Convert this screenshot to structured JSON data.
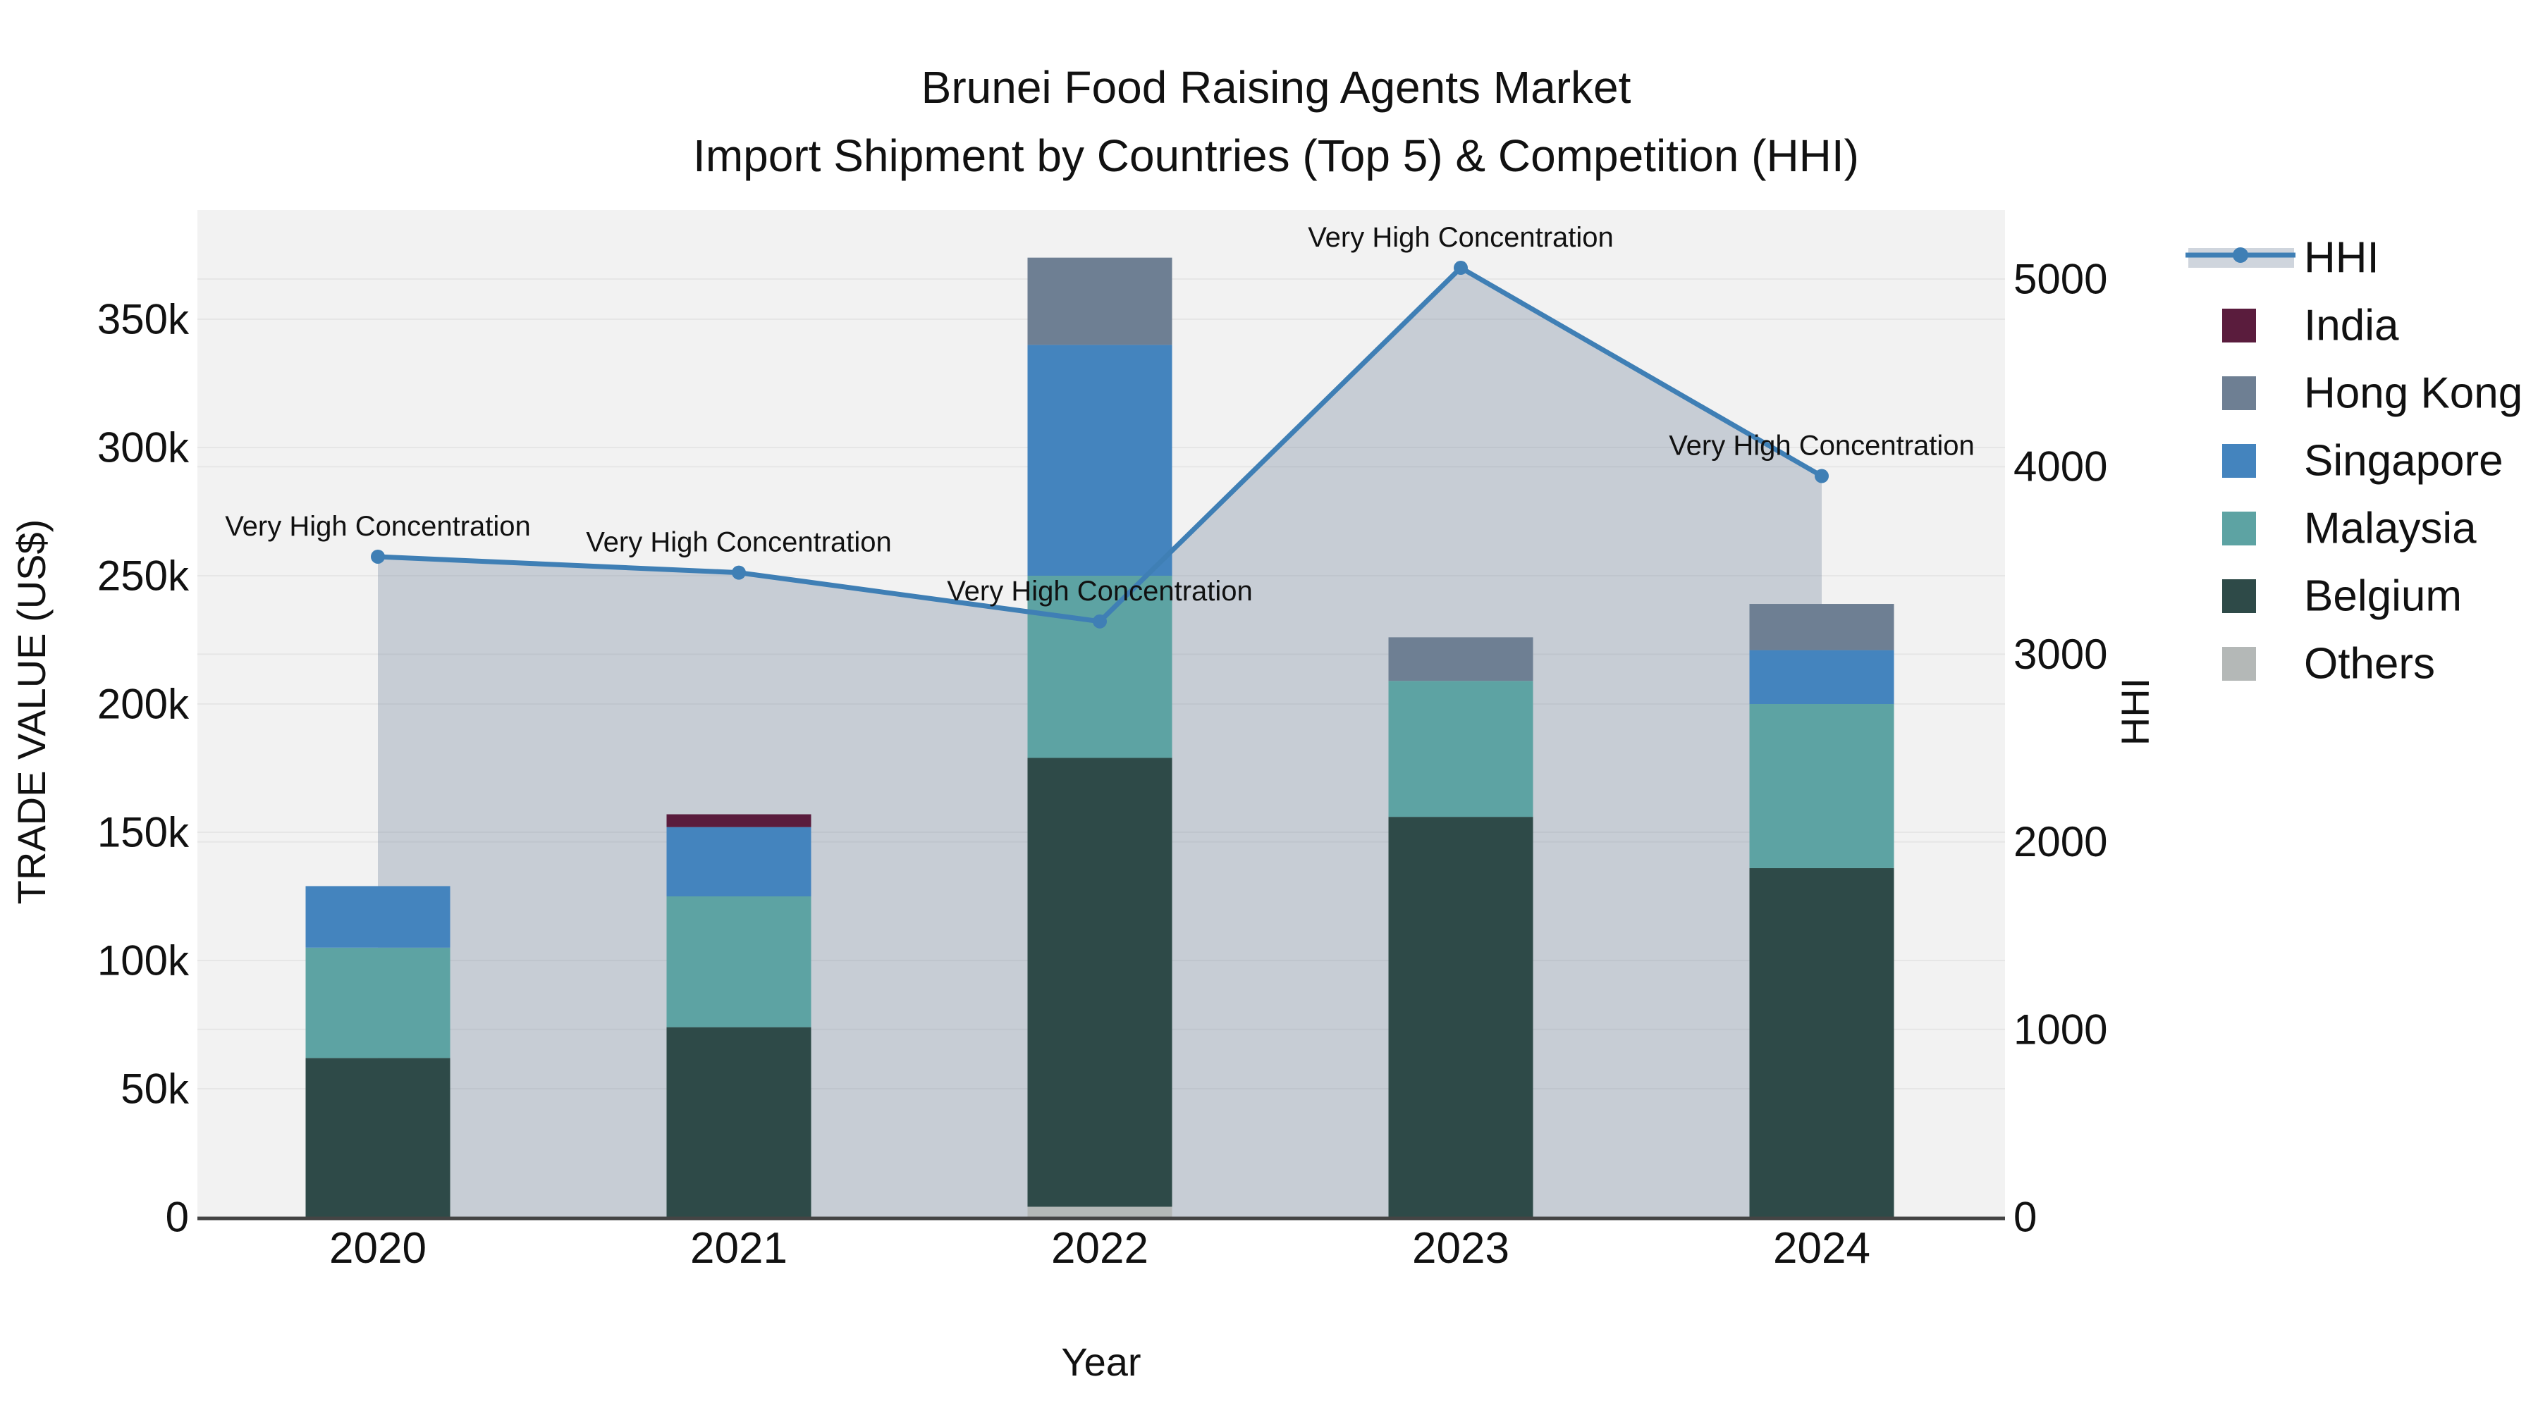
{
  "title": {
    "line1": "Brunei Food Raising Agents Market",
    "line2": "Import Shipment by Countries (Top 5) & Competition (HHI)"
  },
  "axes": {
    "x_title": "Year",
    "y_left_title": "TRADE VALUE (US$)",
    "y_right_title": "HHI",
    "y_left_ticks": [
      "0",
      "50k",
      "100k",
      "150k",
      "200k",
      "250k",
      "300k",
      "350k"
    ],
    "y_right_ticks": [
      "0",
      "1000",
      "2000",
      "3000",
      "4000",
      "5000"
    ]
  },
  "legend": {
    "items": [
      {
        "label": "HHI",
        "type": "line",
        "color": "#3f7fb5"
      },
      {
        "label": "India",
        "type": "swatch",
        "color": "#5a1c3d"
      },
      {
        "label": "Hong Kong",
        "type": "swatch",
        "color": "#6e7f93"
      },
      {
        "label": "Singapore",
        "type": "swatch",
        "color": "#4484be"
      },
      {
        "label": "Malaysia",
        "type": "swatch",
        "color": "#5da3a3"
      },
      {
        "label": "Belgium",
        "type": "swatch",
        "color": "#2e4a48"
      },
      {
        "label": "Others",
        "type": "swatch",
        "color": "#b4b8b7"
      }
    ]
  },
  "chart_data": {
    "type": "bar+line",
    "title": "Brunei Food Raising Agents Market — Import Shipment by Countries (Top 5) & Competition (HHI)",
    "xlabel": "Year",
    "ylabel_left": "TRADE VALUE (US$)",
    "ylabel_right": "HHI",
    "categories": [
      "2020",
      "2021",
      "2022",
      "2023",
      "2024"
    ],
    "stack_note": "bar_series listed bottom-to-top stacking order; values in US$",
    "bar_series": [
      {
        "name": "Others",
        "color": "#b4b8b7",
        "values": [
          0,
          0,
          4000,
          0,
          0
        ]
      },
      {
        "name": "Belgium",
        "color": "#2e4a48",
        "values": [
          62000,
          74000,
          175000,
          156000,
          136000
        ]
      },
      {
        "name": "Malaysia",
        "color": "#5da3a3",
        "values": [
          43000,
          51000,
          71000,
          53000,
          64000
        ]
      },
      {
        "name": "Singapore",
        "color": "#4484be",
        "values": [
          24000,
          27000,
          90000,
          0,
          21000
        ]
      },
      {
        "name": "Hong Kong",
        "color": "#6e7f93",
        "values": [
          0,
          0,
          34000,
          17000,
          18000
        ]
      },
      {
        "name": "India",
        "color": "#5a1c3d",
        "values": [
          0,
          5000,
          0,
          0,
          0
        ]
      }
    ],
    "line_series": {
      "name": "HHI",
      "color": "#3f7fb5",
      "area_color": "rgba(130,144,166,0.38)",
      "values": [
        3520,
        3435,
        3175,
        5060,
        3950
      ]
    },
    "point_label": "Very High Concentration",
    "ylim_left": [
      0,
      392000
    ],
    "ylim_right": [
      0,
      5380
    ],
    "grid": "on",
    "legend_position": "right"
  }
}
